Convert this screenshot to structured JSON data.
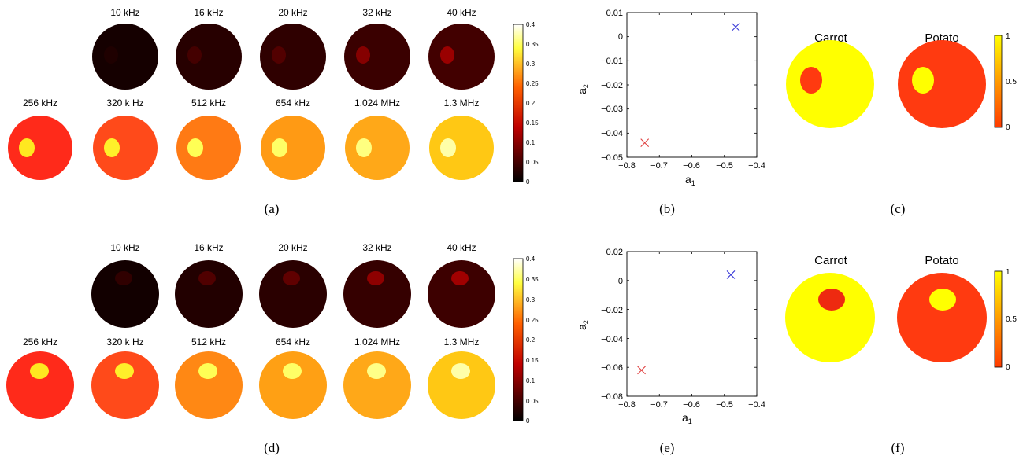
{
  "panels": [
    {
      "id": "a",
      "caption": "(a)",
      "row1_labels": [
        "10 kHz",
        "16 kHz",
        "20 kHz",
        "32 kHz",
        "40 kHz"
      ],
      "row2_labels": [
        "256 kHz",
        "320 k Hz",
        "512 kHz",
        "654 kHz",
        "1.024 MHz",
        "1.3 MHz"
      ],
      "row1_bg": [
        "#150000",
        "#270000",
        "#2f0000",
        "#3a0000",
        "#420000"
      ],
      "row1_inc": [
        "#1f0000",
        "#440000",
        "#520000",
        "#850000",
        "#9a0000"
      ],
      "row2_bg": [
        "#ff2a1a",
        "#ff4a1a",
        "#ff7a14",
        "#ff9a14",
        "#ffa818",
        "#ffc814"
      ],
      "row2_inc": [
        "#ffe820",
        "#fff02a",
        "#ffff55",
        "#ffff66",
        "#ffff80",
        "#ffffa8"
      ],
      "colorbar_ticks": [
        "0.4",
        "0.35",
        "0.3",
        "0.25",
        "0.2",
        "0.15",
        "0.1",
        "0.05",
        "0"
      ]
    },
    {
      "id": "d",
      "caption": "(d)",
      "row1_labels": [
        "10 kHz",
        "16 kHz",
        "20 kHz",
        "32 kHz",
        "40 kHz"
      ],
      "row2_labels": [
        "256 kHz",
        "320 k Hz",
        "512 kHz",
        "654 kHz",
        "1.024 MHz",
        "1.3 MHz"
      ],
      "row1_bg": [
        "#120000",
        "#220000",
        "#2a0000",
        "#350000",
        "#3d0000"
      ],
      "row1_inc": [
        "#300000",
        "#500000",
        "#600000",
        "#8e0000",
        "#a00000"
      ],
      "row2_bg": [
        "#ff2a1a",
        "#ff4a1a",
        "#ff8814",
        "#ffa014",
        "#ffa818",
        "#ffc814"
      ],
      "row2_inc": [
        "#ffe820",
        "#fff02a",
        "#ffff55",
        "#ffff66",
        "#ffff88",
        "#ffffa8"
      ],
      "colorbar_ticks": [
        "0.4",
        "0.35",
        "0.3",
        "0.25",
        "0.2",
        "0.15",
        "0.1",
        "0.05",
        "0"
      ]
    }
  ],
  "scatter_panels": [
    {
      "id": "b",
      "caption": "(b)",
      "xlabel": "a",
      "xlabel_sub": "1",
      "ylabel": "a",
      "ylabel_sub": "2",
      "xlim": [
        -0.8,
        -0.4
      ],
      "ylim": [
        -0.05,
        0.01
      ],
      "xticks": [
        "−0.8",
        "−0.7",
        "−0.6",
        "−0.5",
        "−0.4"
      ],
      "yticks": [
        "0.01",
        "0",
        "−0.01",
        "−0.02",
        "−0.03",
        "−0.04",
        "−0.05"
      ]
    },
    {
      "id": "e",
      "caption": "(e)",
      "xlabel": "a",
      "xlabel_sub": "1",
      "ylabel": "a",
      "ylabel_sub": "2",
      "xlim": [
        -0.8,
        -0.4
      ],
      "ylim": [
        -0.08,
        0.02
      ],
      "xticks": [
        "−0.8",
        "−0.7",
        "−0.6",
        "−0.5",
        "−0.4"
      ],
      "yticks": [
        "0.02",
        "0",
        "−0.02",
        "−0.04",
        "−0.06",
        "−0.08"
      ]
    }
  ],
  "chart_data": [
    {
      "type": "scatter",
      "panel": "(b)",
      "xlabel": "a1",
      "ylabel": "a2",
      "xlim": [
        -0.8,
        -0.4
      ],
      "ylim": [
        -0.05,
        0.01
      ],
      "series": [
        {
          "marker": "x",
          "color": "#e04040",
          "points": [
            [
              -0.745,
              -0.044
            ]
          ]
        },
        {
          "marker": "x",
          "color": "#3a3ad8",
          "points": [
            [
              -0.465,
              0.004
            ]
          ]
        }
      ]
    },
    {
      "type": "scatter",
      "panel": "(e)",
      "xlabel": "a1",
      "ylabel": "a2",
      "xlim": [
        -0.8,
        -0.4
      ],
      "ylim": [
        -0.08,
        0.02
      ],
      "series": [
        {
          "marker": "x",
          "color": "#e04040",
          "points": [
            [
              -0.755,
              -0.062
            ]
          ]
        },
        {
          "marker": "x",
          "color": "#3a3ad8",
          "points": [
            [
              -0.48,
              0.004
            ]
          ]
        }
      ]
    }
  ],
  "material_panels": [
    {
      "id": "c",
      "caption": "(c)",
      "labels": [
        "Carrot",
        "Potato"
      ],
      "colorbar_ticks": [
        "1",
        "0.5",
        "0"
      ]
    },
    {
      "id": "f",
      "caption": "(f)",
      "labels": [
        "Carrot",
        "Potato"
      ],
      "colorbar_ticks": [
        "1",
        "0.5",
        "0"
      ]
    }
  ],
  "colors": {
    "yellow": "#ffff00",
    "orange_red": "#ff3a10",
    "dark_red": "#ee2a10",
    "red_cross": "#e04040",
    "blue_cross": "#3a3ad8"
  }
}
